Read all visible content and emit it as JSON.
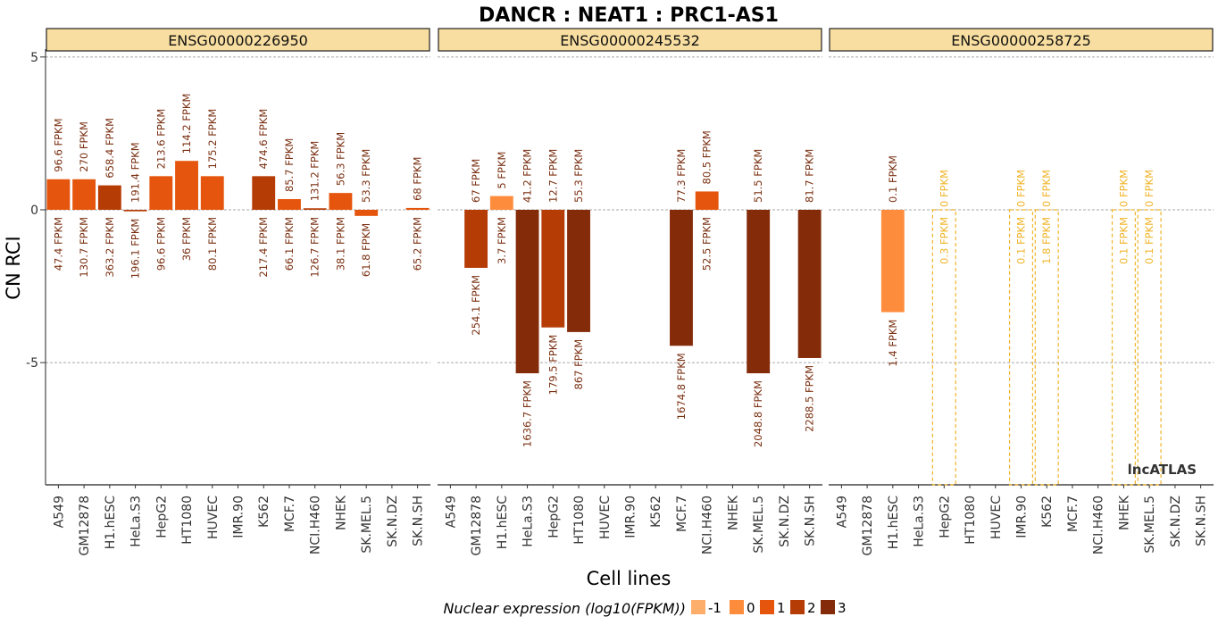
{
  "chart_data": {
    "type": "bar",
    "title": "DANCR : NEAT1 : PRC1-AS1",
    "ylabel": "CN RCI",
    "xlabel": "Cell lines",
    "yticks": [
      5,
      0,
      -5
    ],
    "ylim": [
      -9.0,
      5.2
    ],
    "watermark": "lncATLAS",
    "legend": {
      "title": "Nuclear expression (log10(FPKM))",
      "items": [
        {
          "label": "-1",
          "color": "#fdae6b"
        },
        {
          "label": "0",
          "color": "#fd8d3c"
        },
        {
          "label": "1",
          "color": "#e6550d"
        },
        {
          "label": "2",
          "color": "#b63c06"
        },
        {
          "label": "3",
          "color": "#842b0a"
        }
      ]
    },
    "categories": [
      "A549",
      "GM12878",
      "H1.hESC",
      "HeLa.S3",
      "HepG2",
      "HT1080",
      "HUVEC",
      "IMR.90",
      "K562",
      "MCF.7",
      "NCI.H460",
      "NHEK",
      "SK.MEL.5",
      "SK.N.DZ",
      "SK.N.SH"
    ],
    "panels": [
      {
        "gene": "ENSG00000226950",
        "bars": [
          {
            "cell": "A549",
            "value": 1.0,
            "color": "#e6550d",
            "dashed": false,
            "top_label": "96.6 FPKM",
            "bottom_label": "47.4 FPKM"
          },
          {
            "cell": "GM12878",
            "value": 1.0,
            "color": "#e6550d",
            "dashed": false,
            "top_label": "270 FPKM",
            "bottom_label": "130.7 FPKM"
          },
          {
            "cell": "H1.hESC",
            "value": 0.8,
            "color": "#b63c06",
            "dashed": false,
            "top_label": "658.4 FPKM",
            "bottom_label": "363.2 FPKM"
          },
          {
            "cell": "HeLa.S3",
            "value": -0.05,
            "color": "#b63c06",
            "dashed": false,
            "top_label": "191.4 FPKM",
            "bottom_label": "196.1 FPKM"
          },
          {
            "cell": "HepG2",
            "value": 1.1,
            "color": "#e6550d",
            "dashed": false,
            "top_label": "213.6 FPKM",
            "bottom_label": "96.6 FPKM"
          },
          {
            "cell": "HT1080",
            "value": 1.6,
            "color": "#e6550d",
            "dashed": false,
            "top_label": "114.2 FPKM",
            "bottom_label": "36 FPKM"
          },
          {
            "cell": "HUVEC",
            "value": 1.1,
            "color": "#e6550d",
            "dashed": false,
            "top_label": "175.2 FPKM",
            "bottom_label": "80.1 FPKM"
          },
          {
            "cell": "K562",
            "value": 1.1,
            "color": "#b63c06",
            "dashed": false,
            "top_label": "474.6 FPKM",
            "bottom_label": "217.4 FPKM"
          },
          {
            "cell": "MCF.7",
            "value": 0.35,
            "color": "#e6550d",
            "dashed": false,
            "top_label": "85.7 FPKM",
            "bottom_label": "66.1 FPKM"
          },
          {
            "cell": "NCI.H460",
            "value": 0.05,
            "color": "#b63c06",
            "dashed": false,
            "top_label": "131.2 FPKM",
            "bottom_label": "126.7 FPKM"
          },
          {
            "cell": "NHEK",
            "value": 0.55,
            "color": "#e6550d",
            "dashed": false,
            "top_label": "56.3 FPKM",
            "bottom_label": "38.1 FPKM"
          },
          {
            "cell": "SK.MEL.5",
            "value": -0.2,
            "color": "#e6550d",
            "dashed": false,
            "top_label": "53.3 FPKM",
            "bottom_label": "61.8 FPKM"
          },
          {
            "cell": "SK.N.SH",
            "value": 0.06,
            "color": "#e6550d",
            "dashed": false,
            "top_label": "68 FPKM",
            "bottom_label": "65.2 FPKM"
          }
        ]
      },
      {
        "gene": "ENSG00000245532",
        "bars": [
          {
            "cell": "GM12878",
            "value": -1.9,
            "color": "#b63c06",
            "dashed": false,
            "top_label": "67 FPKM",
            "bottom_label": "254.1 FPKM"
          },
          {
            "cell": "H1.hESC",
            "value": 0.45,
            "color": "#fd8d3c",
            "dashed": false,
            "top_label": "5 FPKM",
            "bottom_label": "3.7 FPKM"
          },
          {
            "cell": "HeLa.S3",
            "value": -5.35,
            "color": "#842b0a",
            "dashed": false,
            "top_label": "41.2 FPKM",
            "bottom_label": "1636.7 FPKM"
          },
          {
            "cell": "HepG2",
            "value": -3.85,
            "color": "#b63c06",
            "dashed": false,
            "top_label": "12.7 FPKM",
            "bottom_label": "179.5 FPKM"
          },
          {
            "cell": "HT1080",
            "value": -4.0,
            "color": "#842b0a",
            "dashed": false,
            "top_label": "55.3 FPKM",
            "bottom_label": "867 FPKM"
          },
          {
            "cell": "MCF.7",
            "value": -4.45,
            "color": "#842b0a",
            "dashed": false,
            "top_label": "77.3 FPKM",
            "bottom_label": "1674.8 FPKM"
          },
          {
            "cell": "NCI.H460",
            "value": 0.6,
            "color": "#e6550d",
            "dashed": false,
            "top_label": "80.5 FPKM",
            "bottom_label": "52.5 FPKM"
          },
          {
            "cell": "SK.MEL.5",
            "value": -5.35,
            "color": "#842b0a",
            "dashed": false,
            "top_label": "51.5 FPKM",
            "bottom_label": "2048.8 FPKM"
          },
          {
            "cell": "SK.N.SH",
            "value": -4.85,
            "color": "#842b0a",
            "dashed": false,
            "top_label": "81.7 FPKM",
            "bottom_label": "2288.5 FPKM"
          }
        ]
      },
      {
        "gene": "ENSG00000258725",
        "bars": [
          {
            "cell": "H1.hESC",
            "value": -3.35,
            "color": "#fd8d3c",
            "dashed": false,
            "top_label": "0.1 FPKM",
            "bottom_label": "1.4 FPKM"
          },
          {
            "cell": "HepG2",
            "value": -9.0,
            "color": "#f0b429",
            "dashed": true,
            "top_label": "0 FPKM",
            "bottom_label": "0.3 FPKM"
          },
          {
            "cell": "IMR.90",
            "value": -9.0,
            "color": "#f0b429",
            "dashed": true,
            "top_label": "0 FPKM",
            "bottom_label": "0.1 FPKM"
          },
          {
            "cell": "K562",
            "value": -9.0,
            "color": "#f0b429",
            "dashed": true,
            "top_label": "0 FPKM",
            "bottom_label": "1.8 FPKM"
          },
          {
            "cell": "NHEK",
            "value": -9.0,
            "color": "#f0b429",
            "dashed": true,
            "top_label": "0 FPKM",
            "bottom_label": "0.1 FPKM"
          },
          {
            "cell": "SK.MEL.5",
            "value": -9.0,
            "color": "#f0b429",
            "dashed": true,
            "top_label": "0 FPKM",
            "bottom_label": "0.1 FPKM"
          }
        ]
      }
    ]
  }
}
